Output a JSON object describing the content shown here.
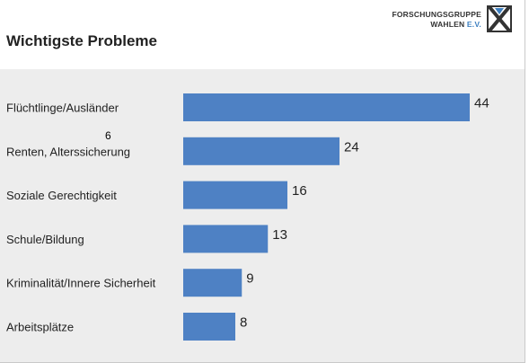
{
  "brand": {
    "line1": "FORSCHUNGSGRUPPE",
    "line2_name": "WAHLEN",
    "line2_suffix": "E.V."
  },
  "colors": {
    "bar": "#4e81c4",
    "plot_background": "#ededed",
    "text": "#222222"
  },
  "icons": {
    "logo": "fgw-x-logo-icon",
    "marker": "stylized-6-glyph"
  },
  "marker_glyph": "6",
  "chart_data": {
    "type": "bar",
    "orientation": "horizontal",
    "title": "Wichtigste Probleme",
    "categories": [
      "Flüchtlinge/Ausländer",
      "Renten, Alterssicherung",
      "Soziale Gerechtigkeit",
      "Schule/Bildung",
      "Kriminalität/Innere Sicherheit",
      "Arbeitsplätze"
    ],
    "values": [
      44,
      24,
      16,
      13,
      9,
      8
    ],
    "data_labels": [
      "44",
      "24",
      "16",
      "13",
      "9",
      "8"
    ],
    "xlim": [
      0,
      44
    ],
    "grid": false,
    "legend": "none"
  }
}
